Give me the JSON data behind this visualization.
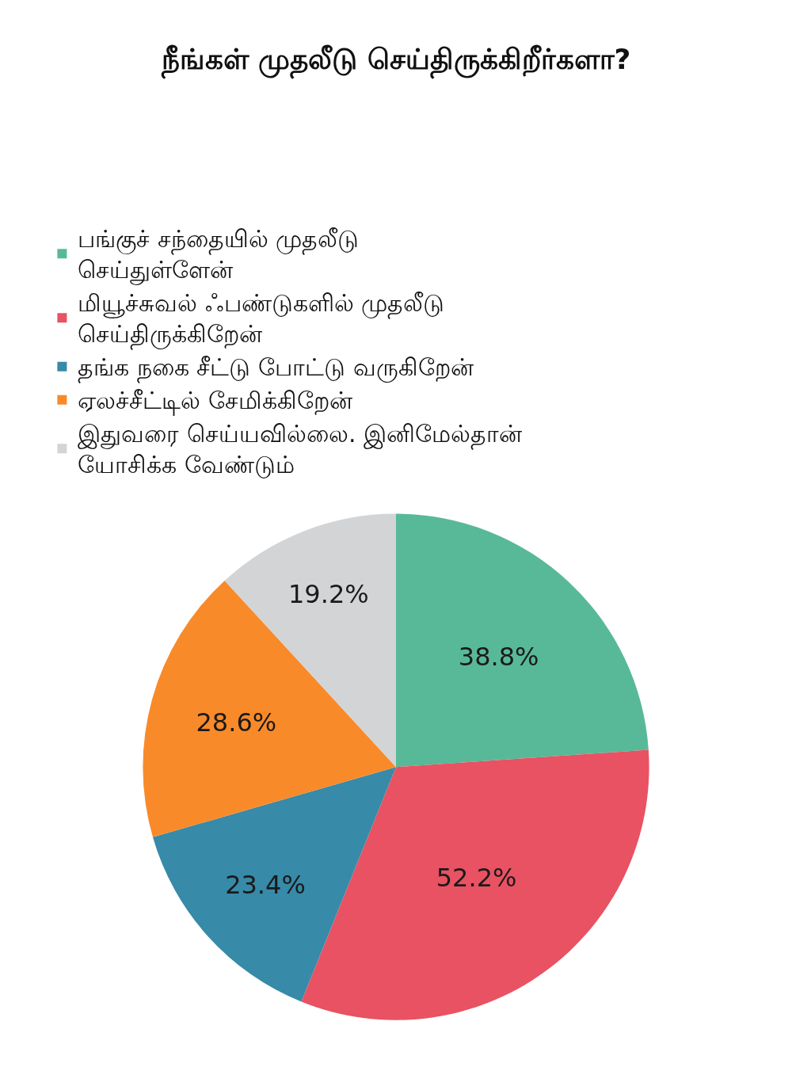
{
  "chart_data": {
    "type": "pie",
    "title": "நீங்கள் முதலீடு செய்திருக்கிறீர்களா?",
    "categories": [
      "பங்குச் சந்தையில் முதலீடு செய்துள்ளேன்",
      "மியூச்சுவல் ஃபண்டுகளில் முதலீடு செய்திருக்கிறேன்",
      "தங்க நகை சீட்டு போட்டு வருகிறேன்",
      "ஏலச்சீட்டில் சேமிக்கிறேன்",
      "இதுவரை செய்யவில்லை. இனிமேல்தான் யோசிக்க வேண்டும்"
    ],
    "values": [
      38.8,
      52.2,
      23.4,
      28.6,
      19.2
    ],
    "value_labels": [
      "38.8%",
      "52.2%",
      "23.4%",
      "28.6%",
      "19.2%"
    ],
    "colors": [
      "#58b998",
      "#e85262",
      "#378aa8",
      "#f98a2a",
      "#d3d4d6"
    ],
    "legend": "top"
  }
}
